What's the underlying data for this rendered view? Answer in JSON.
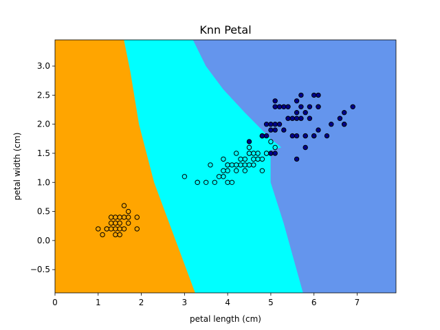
{
  "chart_data": {
    "type": "scatter",
    "title": "Knn Petal",
    "xlabel": "petal length (cm)",
    "ylabel": "petal width (cm)",
    "xlim": [
      0,
      7.9
    ],
    "ylim": [
      -0.9,
      3.45
    ],
    "xticks": [
      0,
      1,
      2,
      3,
      4,
      5,
      6,
      7
    ],
    "yticks": [
      -0.5,
      0.0,
      0.5,
      1.0,
      1.5,
      2.0,
      2.5,
      3.0
    ],
    "xtick_labels": [
      "0",
      "1",
      "2",
      "3",
      "4",
      "5",
      "6",
      "7"
    ],
    "ytick_labels": [
      "−0.5",
      "0.0",
      "0.5",
      "1.0",
      "1.5",
      "2.0",
      "2.5",
      "3.0"
    ],
    "grid": false,
    "regions": [
      {
        "color": "#ffa500",
        "polygon": [
          [
            0,
            -0.9
          ],
          [
            0,
            3.45
          ],
          [
            1.6,
            3.45
          ],
          [
            1.75,
            2.9
          ],
          [
            1.95,
            2.0
          ],
          [
            2.3,
            1.0
          ],
          [
            2.7,
            0.2
          ],
          [
            3.25,
            -0.9
          ]
        ]
      },
      {
        "color": "#00ffff",
        "polygon": [
          [
            1.6,
            3.45
          ],
          [
            3.2,
            3.45
          ],
          [
            3.5,
            3.0
          ],
          [
            3.9,
            2.6
          ],
          [
            4.4,
            2.2
          ],
          [
            4.8,
            1.9
          ],
          [
            5.0,
            1.75
          ],
          [
            5.25,
            1.6
          ],
          [
            5.0,
            1.55
          ],
          [
            5.0,
            1.0
          ],
          [
            5.3,
            0.3
          ],
          [
            5.6,
            -0.5
          ],
          [
            5.75,
            -0.9
          ],
          [
            3.25,
            -0.9
          ],
          [
            2.7,
            0.2
          ],
          [
            2.3,
            1.0
          ],
          [
            1.95,
            2.0
          ],
          [
            1.75,
            2.9
          ]
        ]
      },
      {
        "color": "#6495ed",
        "polygon": [
          [
            3.2,
            3.45
          ],
          [
            7.9,
            3.45
          ],
          [
            7.9,
            -0.9
          ],
          [
            5.75,
            -0.9
          ],
          [
            5.6,
            -0.5
          ],
          [
            5.3,
            0.3
          ],
          [
            5.0,
            1.0
          ],
          [
            5.0,
            1.55
          ],
          [
            5.25,
            1.6
          ],
          [
            5.0,
            1.75
          ],
          [
            4.8,
            1.9
          ],
          [
            4.4,
            2.2
          ],
          [
            3.9,
            2.6
          ],
          [
            3.5,
            3.0
          ]
        ]
      }
    ],
    "series": [
      {
        "color": "#ffa500",
        "points": [
          [
            1.4,
            0.2
          ],
          [
            1.3,
            0.2
          ],
          [
            1.5,
            0.2
          ],
          [
            1.7,
            0.4
          ],
          [
            1.4,
            0.3
          ],
          [
            1.5,
            0.1
          ],
          [
            1.6,
            0.2
          ],
          [
            1.4,
            0.1
          ],
          [
            1.1,
            0.1
          ],
          [
            1.2,
            0.2
          ],
          [
            1.3,
            0.4
          ],
          [
            1.7,
            0.3
          ],
          [
            1.5,
            0.3
          ],
          [
            1.0,
            0.2
          ],
          [
            1.7,
            0.5
          ],
          [
            1.9,
            0.2
          ],
          [
            1.6,
            0.4
          ],
          [
            1.5,
            0.4
          ],
          [
            1.3,
            0.3
          ],
          [
            1.6,
            0.6
          ],
          [
            1.9,
            0.4
          ],
          [
            1.2,
            0.2
          ],
          [
            1.4,
            0.4
          ]
        ]
      },
      {
        "color": "#00ffff",
        "points": [
          [
            4.7,
            1.4
          ],
          [
            4.5,
            1.5
          ],
          [
            4.9,
            1.5
          ],
          [
            4.0,
            1.3
          ],
          [
            4.6,
            1.5
          ],
          [
            3.3,
            1.0
          ],
          [
            4.6,
            1.3
          ],
          [
            3.9,
            1.4
          ],
          [
            3.5,
            1.0
          ],
          [
            4.2,
            1.5
          ],
          [
            4.0,
            1.0
          ],
          [
            4.7,
            1.4
          ],
          [
            3.6,
            1.3
          ],
          [
            4.4,
            1.4
          ],
          [
            4.5,
            1.5
          ],
          [
            4.1,
            1.0
          ],
          [
            3.9,
            1.1
          ],
          [
            4.8,
            1.8
          ],
          [
            4.0,
            1.3
          ],
          [
            4.9,
            1.5
          ],
          [
            4.8,
            1.4
          ],
          [
            5.0,
            1.7
          ],
          [
            3.8,
            1.1
          ],
          [
            3.7,
            1.0
          ],
          [
            5.1,
            1.6
          ],
          [
            4.5,
            1.6
          ],
          [
            4.7,
            1.5
          ],
          [
            4.4,
            1.3
          ],
          [
            4.1,
            1.3
          ],
          [
            4.0,
            1.2
          ],
          [
            4.4,
            1.2
          ],
          [
            4.6,
            1.4
          ],
          [
            3.0,
            1.1
          ],
          [
            4.3,
            1.3
          ],
          [
            4.2,
            1.3
          ],
          [
            4.2,
            1.2
          ],
          [
            3.9,
            1.2
          ],
          [
            4.3,
            1.4
          ],
          [
            4.5,
            1.3
          ],
          [
            3.3,
            1.0
          ],
          [
            4.8,
            1.2
          ]
        ]
      },
      {
        "color": "#00008b",
        "points": [
          [
            6.0,
            2.5
          ],
          [
            5.1,
            1.9
          ],
          [
            5.9,
            2.1
          ],
          [
            5.6,
            1.8
          ],
          [
            5.8,
            2.2
          ],
          [
            6.6,
            2.1
          ],
          [
            4.5,
            1.7
          ],
          [
            6.3,
            1.8
          ],
          [
            5.8,
            1.8
          ],
          [
            6.1,
            2.5
          ],
          [
            5.1,
            2.0
          ],
          [
            5.3,
            1.9
          ],
          [
            5.5,
            2.1
          ],
          [
            5.0,
            2.0
          ],
          [
            5.1,
            2.4
          ],
          [
            5.3,
            2.3
          ],
          [
            5.5,
            1.8
          ],
          [
            6.7,
            2.2
          ],
          [
            6.9,
            2.3
          ],
          [
            5.0,
            1.5
          ],
          [
            5.7,
            2.3
          ],
          [
            4.9,
            2.0
          ],
          [
            6.7,
            2.0
          ],
          [
            4.9,
            1.8
          ],
          [
            5.7,
            2.1
          ],
          [
            6.0,
            1.8
          ],
          [
            4.8,
            1.8
          ],
          [
            5.6,
            2.1
          ],
          [
            5.8,
            1.6
          ],
          [
            6.1,
            1.9
          ],
          [
            6.4,
            2.0
          ],
          [
            5.6,
            2.2
          ],
          [
            5.1,
            1.5
          ],
          [
            5.6,
            1.4
          ],
          [
            6.1,
            2.3
          ],
          [
            5.6,
            2.4
          ],
          [
            5.4,
            2.1
          ],
          [
            5.2,
            2.3
          ],
          [
            5.2,
            2.0
          ],
          [
            5.4,
            2.3
          ],
          [
            5.7,
            2.5
          ],
          [
            5.9,
            2.3
          ],
          [
            6.1,
            2.3
          ],
          [
            5.1,
            2.3
          ],
          [
            5.8,
            1.8
          ],
          [
            6.0,
            1.8
          ],
          [
            5.0,
            1.9
          ],
          [
            4.8,
            1.8
          ],
          [
            6.7,
            2.0
          ]
        ]
      }
    ]
  }
}
